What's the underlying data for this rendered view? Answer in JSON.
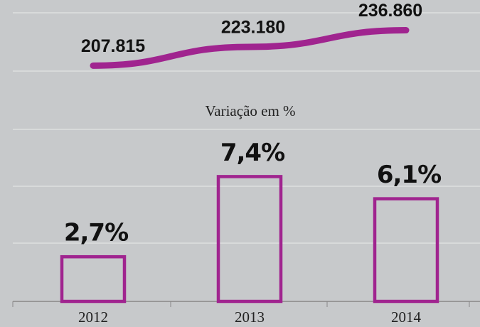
{
  "chart_data": [
    {
      "type": "line",
      "categories": [
        "2012",
        "2013",
        "2014"
      ],
      "values": [
        207815,
        223180,
        236860
      ],
      "value_labels": [
        "207.815",
        "223.180",
        "236.860"
      ],
      "color": "#a0248f",
      "ylim": [
        180000,
        250000
      ]
    },
    {
      "type": "bar",
      "subtitle": "Variação em %",
      "categories": [
        "2012",
        "2013",
        "2014"
      ],
      "values": [
        2.7,
        7.4,
        6.1
      ],
      "value_labels": [
        "2,7%",
        "7,4%",
        "6,1%"
      ],
      "color": "#a0248f",
      "ylim": [
        0,
        10
      ]
    }
  ]
}
